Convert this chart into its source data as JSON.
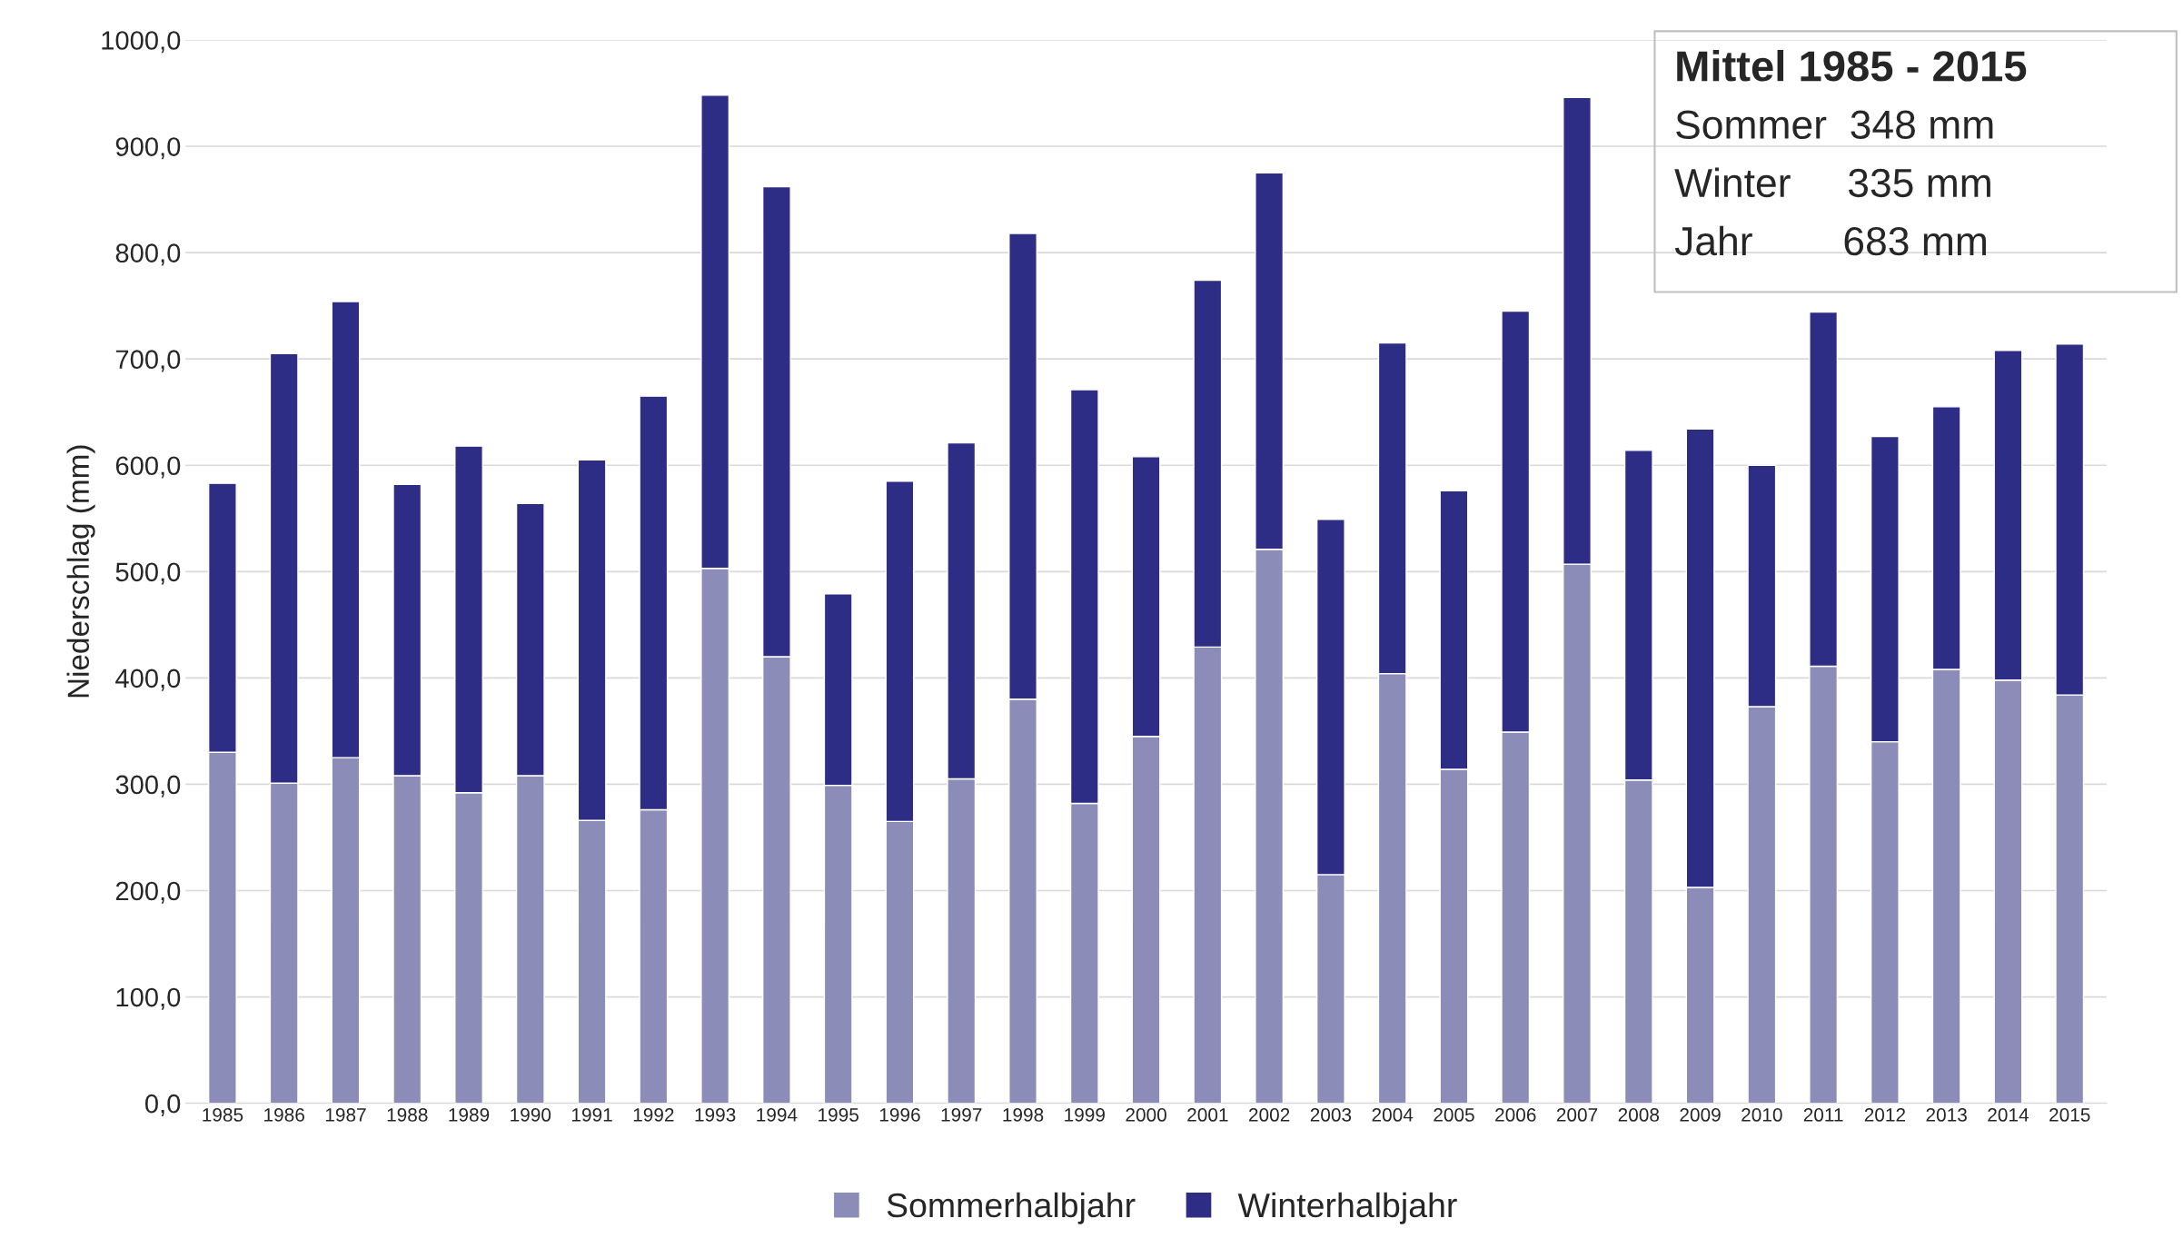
{
  "chart_data": {
    "type": "bar",
    "stacked": true,
    "ylabel": "Niederschlag (mm)",
    "categories": [
      "1985",
      "1986",
      "1987",
      "1988",
      "1989",
      "1990",
      "1991",
      "1992",
      "1993",
      "1994",
      "1995",
      "1996",
      "1997",
      "1998",
      "1999",
      "2000",
      "2001",
      "2002",
      "2003",
      "2004",
      "2005",
      "2006",
      "2007",
      "2008",
      "2009",
      "2010",
      "2011",
      "2012",
      "2013",
      "2014",
      "2015"
    ],
    "series": [
      {
        "name": "Sommerhalbjahr",
        "color": "#8b8db8",
        "values": [
          330,
          301,
          325,
          308,
          292,
          308,
          266,
          276,
          503,
          420,
          299,
          265,
          305,
          380,
          282,
          345,
          429,
          521,
          215,
          404,
          314,
          349,
          507,
          304,
          203,
          373,
          411,
          340,
          408,
          398,
          384
        ]
      },
      {
        "name": "Winterhalbjahr",
        "color": "#2e2d86",
        "values": [
          253,
          404,
          429,
          274,
          326,
          256,
          339,
          389,
          445,
          442,
          180,
          320,
          316,
          438,
          389,
          263,
          345,
          354,
          334,
          311,
          262,
          396,
          439,
          310,
          431,
          227,
          333,
          287,
          247,
          310,
          330
        ]
      }
    ],
    "ylim": [
      0,
      1000
    ],
    "yticks": [
      {
        "value": 0,
        "label": "0,0"
      },
      {
        "value": 100,
        "label": "100,0"
      },
      {
        "value": 200,
        "label": "200,0"
      },
      {
        "value": 300,
        "label": "300,0"
      },
      {
        "value": 400,
        "label": "400,0"
      },
      {
        "value": 500,
        "label": "500,0"
      },
      {
        "value": 600,
        "label": "600,0"
      },
      {
        "value": 700,
        "label": "700,0"
      },
      {
        "value": 800,
        "label": "800,0"
      },
      {
        "value": 900,
        "label": "900,0"
      },
      {
        "value": 1000,
        "label": "1000,0"
      }
    ],
    "grid": "y",
    "legend": "bottom",
    "annotations": [
      "Mittel 1985 - 2015",
      "Sommer  348 mm",
      "Winter     335 mm",
      "Jahr        683 mm"
    ]
  }
}
